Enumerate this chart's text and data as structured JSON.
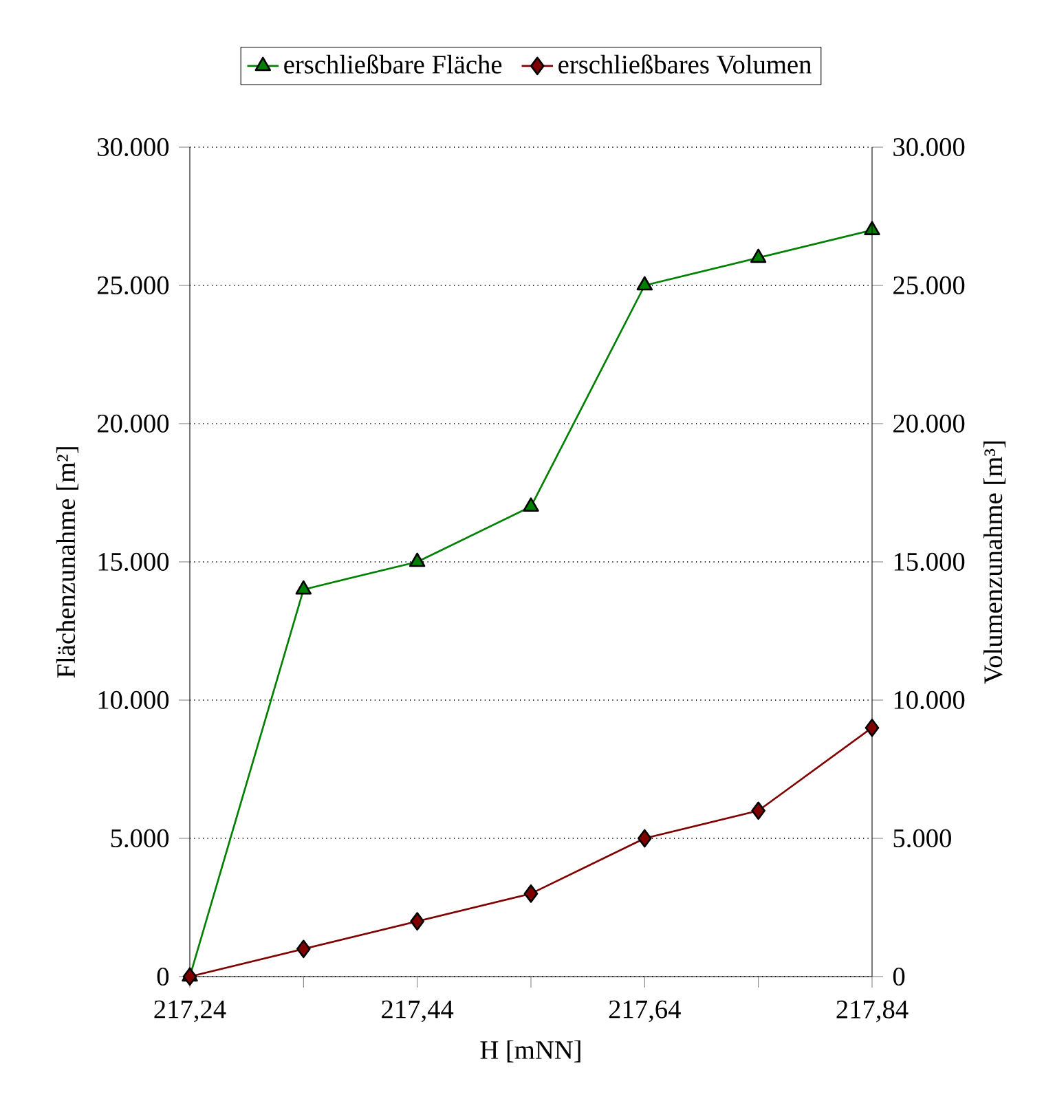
{
  "chart_data": {
    "type": "line",
    "xlabel": "H [mNN]",
    "ylabel": "Flächenzunahme [m²]",
    "y2label": "Volumenzunahme [m³]",
    "x": [
      217.24,
      217.34,
      217.44,
      217.54,
      217.64,
      217.74,
      217.84
    ],
    "series": [
      {
        "name": "erschließbare Fläche",
        "color": "#008000",
        "marker": "triangle",
        "values": [
          0,
          14000,
          15000,
          17000,
          25000,
          26000,
          27000
        ]
      },
      {
        "name": "erschließbares Volumen",
        "color": "#800000",
        "marker": "diamond",
        "axis": "y2",
        "values": [
          0,
          1000,
          2000,
          3000,
          5000,
          6000,
          9000
        ]
      }
    ],
    "xlim": [
      217.24,
      217.84
    ],
    "xticks": [
      {
        "value": 217.24,
        "label": "217,24"
      },
      {
        "value": 217.34,
        "label": null
      },
      {
        "value": 217.44,
        "label": "217,44"
      },
      {
        "value": 217.54,
        "label": null
      },
      {
        "value": 217.64,
        "label": "217,64"
      },
      {
        "value": 217.74,
        "label": null
      },
      {
        "value": 217.84,
        "label": "217,84"
      }
    ],
    "ylim": [
      0,
      30000
    ],
    "yticks": [
      0,
      {
        "value": 5000,
        "label": "5.000"
      },
      {
        "value": 10000,
        "label": "10.000"
      },
      {
        "value": 15000,
        "label": "15.000"
      },
      {
        "value": 20000,
        "label": "20.000"
      },
      {
        "value": 25000,
        "label": "25.000"
      },
      {
        "value": 30000,
        "label": "30.000"
      }
    ],
    "y2lim": [
      0,
      30000
    ],
    "y2ticks": [
      0,
      {
        "value": 5000,
        "label": "5.000"
      },
      {
        "value": 10000,
        "label": "10.000"
      },
      {
        "value": 15000,
        "label": "15.000"
      },
      {
        "value": 20000,
        "label": "20.000"
      },
      {
        "value": 25000,
        "label": "25.000"
      },
      {
        "value": 30000,
        "label": "30.000"
      }
    ],
    "grid": "y",
    "legend": "top",
    "line_style": "solid"
  }
}
